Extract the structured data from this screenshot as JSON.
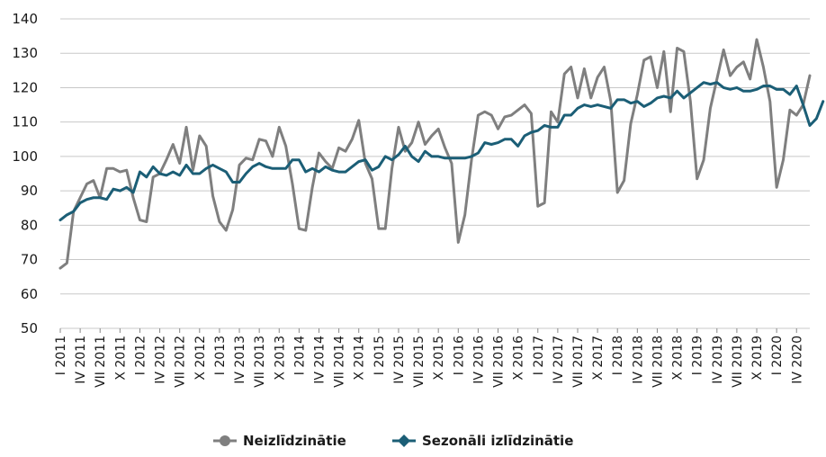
{
  "chart_data": {
    "type": "line",
    "ylim": [
      50,
      140
    ],
    "yticks": [
      50,
      60,
      70,
      80,
      90,
      100,
      110,
      120,
      130,
      140
    ],
    "grid": true,
    "legend_placement": "bottom-center",
    "start_month": "I 2011",
    "tick_labels": [
      "I 2011",
      "IV 2011",
      "VII 2011",
      "X 2011",
      "I 2012",
      "IV 2012",
      "VII 2012",
      "X 2012",
      "I 2013",
      "IV 2013",
      "VII 2013",
      "X 2013",
      "I 2014",
      "IV 2014",
      "VII 2014",
      "X 2014",
      "I 2015",
      "IV 2015",
      "VII 2015",
      "X 2015",
      "I 2016",
      "IV 2016",
      "VII 2016",
      "X 2016",
      "I 2017",
      "IV 2017",
      "VII 2017",
      "X 2017",
      "I 2018",
      "IV 2018",
      "VII 2018",
      "X 2018",
      "I 2019",
      "IV 2019",
      "VII 2019",
      "X 2019",
      "I 2020",
      "IV 2020"
    ],
    "series": [
      {
        "name": "Neizlīdzinātie",
        "color": "#7f7f7f",
        "values": [
          67.5,
          69,
          84,
          88,
          92,
          93,
          88,
          96.5,
          96.5,
          95.5,
          96,
          88,
          81.5,
          81,
          94,
          95,
          99,
          103.5,
          98,
          108.5,
          96,
          106,
          103,
          88.5,
          81,
          78.5,
          84.5,
          97.5,
          99.5,
          99,
          105,
          104.5,
          100,
          108.5,
          103,
          92,
          79,
          78.5,
          91,
          101,
          98.5,
          96.5,
          102.5,
          101.5,
          105,
          110.5,
          98,
          93.5,
          79,
          79,
          96.5,
          108.5,
          101.5,
          104,
          110,
          103.5,
          106,
          108,
          102.5,
          98,
          75,
          83,
          99,
          112,
          113,
          112,
          108,
          111.5,
          112,
          113.5,
          115,
          112.5,
          85.5,
          86.5,
          113,
          110,
          124,
          126,
          117,
          125.5,
          117,
          123,
          126,
          116,
          89.5,
          93,
          109.5,
          118,
          128,
          129,
          120,
          130.5,
          113,
          131.5,
          130.5,
          116,
          93.5,
          99,
          114,
          122.5,
          131,
          123.5,
          126,
          127.5,
          122.5,
          134,
          126,
          116,
          91,
          99,
          113.5,
          112,
          115,
          123.5
        ]
      },
      {
        "name": "Sezonāli izlīdzinātie",
        "color": "#1b5e76",
        "values": [
          81.5,
          83,
          84,
          86.5,
          87.5,
          88,
          88,
          87.5,
          90.5,
          90,
          91,
          89.5,
          95.5,
          94,
          97,
          95,
          94.5,
          95.5,
          94.5,
          97.5,
          95,
          95,
          96.5,
          97.5,
          96.5,
          95.5,
          92.5,
          92.5,
          95,
          97,
          98,
          97,
          96.5,
          96.5,
          96.5,
          99,
          99,
          95.5,
          96.5,
          95.5,
          97,
          96,
          95.5,
          95.5,
          97,
          98.5,
          99,
          96,
          97,
          100,
          99,
          100.5,
          103,
          100,
          98.5,
          101.5,
          100,
          100,
          99.5,
          99.5,
          99.5,
          99.5,
          100,
          101,
          104,
          103.5,
          104,
          105,
          105,
          103,
          106,
          107,
          107.5,
          109,
          108.5,
          108.5,
          112,
          112,
          114,
          115,
          114.5,
          115,
          114.5,
          114,
          116.5,
          116.5,
          115.5,
          116,
          114.5,
          115.5,
          117,
          117.5,
          117,
          119,
          117,
          118.5,
          120,
          121.5,
          121,
          121.5,
          120,
          119.5,
          120,
          119,
          119,
          119.5,
          120.5,
          120.5,
          119.5,
          119.5,
          118,
          120.5,
          115,
          109,
          111,
          116
        ]
      }
    ]
  }
}
